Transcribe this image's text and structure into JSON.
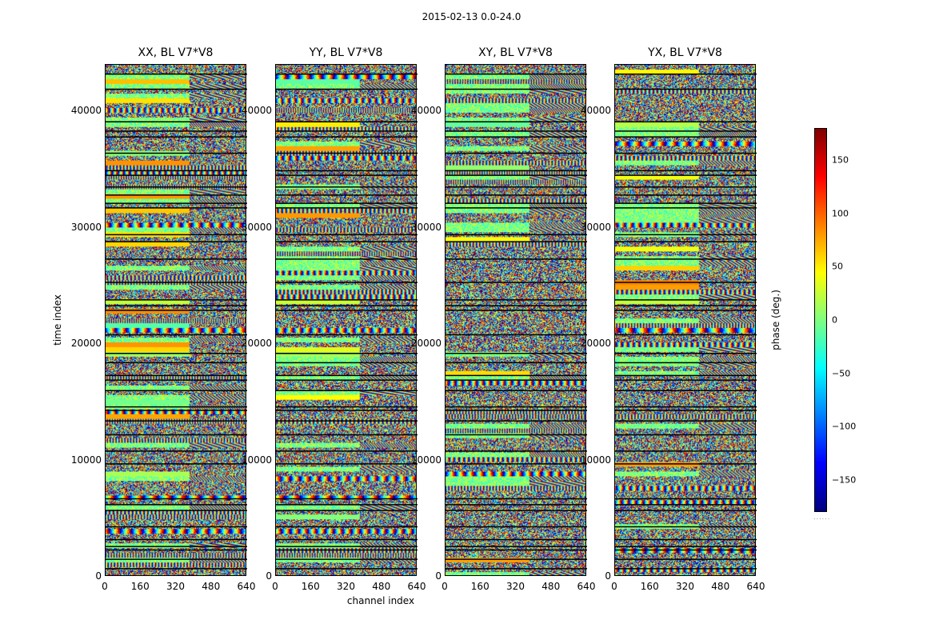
{
  "figure": {
    "suptitle": "2015-02-13 0.0-24.0",
    "xlabel": "channel index",
    "ylabel": "time index",
    "colorbar_label": "phase (deg.)",
    "colorbar_dots": "......"
  },
  "chart_data": [
    {
      "type": "heatmap",
      "title": "XX, BL V7*V8",
      "xlim": [
        0,
        640
      ],
      "ylim": [
        0,
        44000
      ],
      "xticks": [
        0,
        160,
        320,
        480,
        640
      ],
      "yticks": [
        0,
        10000,
        20000,
        30000,
        40000
      ],
      "colormap": "jet",
      "vmin": -180,
      "vmax": 180,
      "seed": 11
    },
    {
      "type": "heatmap",
      "title": "YY, BL V7*V8",
      "xlim": [
        0,
        640
      ],
      "ylim": [
        0,
        44000
      ],
      "xticks": [
        0,
        160,
        320,
        480,
        640
      ],
      "yticks": [
        0,
        10000,
        20000,
        30000,
        40000
      ],
      "colormap": "jet",
      "vmin": -180,
      "vmax": 180,
      "seed": 23
    },
    {
      "type": "heatmap",
      "title": "XY, BL V7*V8",
      "xlim": [
        0,
        640
      ],
      "ylim": [
        0,
        44000
      ],
      "xticks": [
        0,
        160,
        320,
        480,
        640
      ],
      "yticks": [
        0,
        10000,
        20000,
        30000,
        40000
      ],
      "colormap": "jet",
      "vmin": -180,
      "vmax": 180,
      "seed": 37
    },
    {
      "type": "heatmap",
      "title": "YX, BL V7*V8",
      "xlim": [
        0,
        640
      ],
      "ylim": [
        0,
        44000
      ],
      "xticks": [
        0,
        160,
        320,
        480,
        640
      ],
      "yticks": [
        0,
        10000,
        20000,
        30000,
        40000
      ],
      "colormap": "jet",
      "vmin": -180,
      "vmax": 180,
      "seed": 53
    }
  ],
  "gap_rows": [
    700,
    1500,
    2300,
    2600,
    3200,
    4300,
    5700,
    6200,
    6700,
    9700,
    10800,
    12200,
    13400,
    14300,
    14600,
    16000,
    16900,
    17300,
    18400,
    19200,
    20800,
    22900,
    23300,
    23800,
    25300,
    27300,
    28800,
    29400,
    31700,
    32100,
    32800,
    33500,
    34500,
    34900,
    36400,
    37800,
    38300,
    39100,
    41900,
    43200
  ],
  "colorbar": {
    "ticks": [
      150,
      100,
      50,
      0,
      -50,
      -100,
      -150
    ],
    "tick_labels": [
      "150",
      "100",
      "50",
      "0",
      "−50",
      "−100",
      "−150"
    ]
  }
}
